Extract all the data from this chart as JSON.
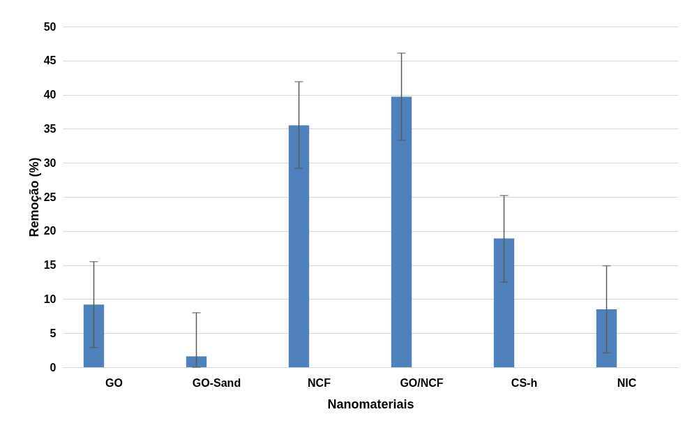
{
  "chart_data": {
    "type": "bar",
    "xlabel": "Nanomateriais",
    "ylabel": "Remoção (%)",
    "categories": [
      "GO",
      "GO-Sand",
      "NCF",
      "GO/NCF",
      "CS-h",
      "NIC"
    ],
    "values": [
      9.2,
      1.6,
      35.5,
      39.7,
      18.9,
      8.5
    ],
    "color": "#4f81bd",
    "errors": [
      [
        2.9,
        15.5
      ],
      [
        0,
        8.0
      ],
      [
        29.2,
        41.9
      ],
      [
        33.3,
        46.1
      ],
      [
        12.5,
        25.2
      ],
      [
        2.1,
        14.9
      ]
    ],
    "ylim": [
      0,
      50
    ],
    "yticks": [
      0,
      5,
      10,
      15,
      20,
      25,
      30,
      35,
      40,
      45,
      50
    ],
    "grid": "y"
  }
}
